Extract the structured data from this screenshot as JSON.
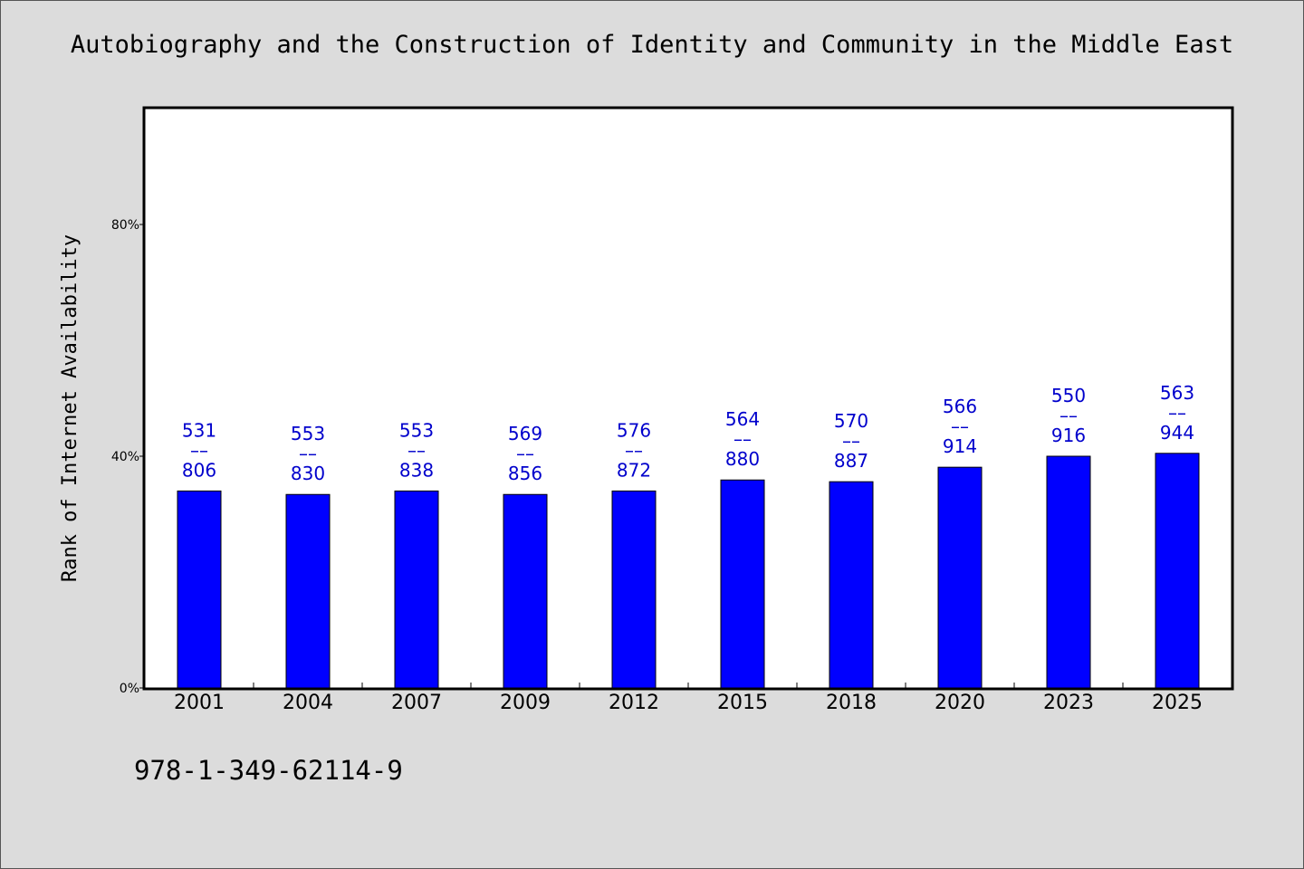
{
  "chart_data": {
    "type": "bar",
    "title": "Autobiography and the Construction of Identity and Community in the Middle East",
    "ylabel": "Rank of Internet Availability",
    "xlabel": "",
    "categories": [
      "2001",
      "2004",
      "2007",
      "2009",
      "2012",
      "2015",
      "2018",
      "2020",
      "2023",
      "2025"
    ],
    "values": [
      0.34,
      0.334,
      0.34,
      0.334,
      0.34,
      0.359,
      0.356,
      0.381,
      0.4,
      0.405
    ],
    "data_labels": [
      {
        "top": "531",
        "sep": "––",
        "bottom": "806"
      },
      {
        "top": "553",
        "sep": "––",
        "bottom": "830"
      },
      {
        "top": "553",
        "sep": "––",
        "bottom": "838"
      },
      {
        "top": "569",
        "sep": "––",
        "bottom": "856"
      },
      {
        "top": "576",
        "sep": "––",
        "bottom": "872"
      },
      {
        "top": "564",
        "sep": "––",
        "bottom": "880"
      },
      {
        "top": "570",
        "sep": "––",
        "bottom": "887"
      },
      {
        "top": "566",
        "sep": "––",
        "bottom": "914"
      },
      {
        "top": "550",
        "sep": "––",
        "bottom": "916"
      },
      {
        "top": "563",
        "sep": "––",
        "bottom": "944"
      }
    ],
    "ylim": [
      0,
      1.0
    ],
    "yticks": [
      {
        "value": 0,
        "label": "0%"
      },
      {
        "value": 0.4,
        "label": "40%"
      },
      {
        "value": 0.8,
        "label": "80%"
      }
    ],
    "grid": false,
    "legend": "none",
    "bar_color": "#0000ff",
    "label_color": "#0000cc",
    "background": "#dcdcdc",
    "plot_background": "#ffffff"
  },
  "footer": {
    "isbn": "978-1-349-62114-9"
  }
}
